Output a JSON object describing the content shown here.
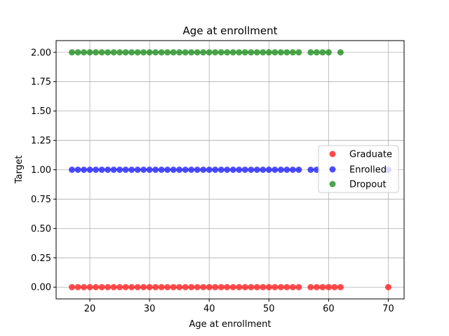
{
  "chart_data": {
    "type": "scatter",
    "title": "Age at enrollment",
    "xlabel": "Age at enrollment",
    "ylabel": "Target",
    "xlim": [
      14.35,
      72.65
    ],
    "ylim": [
      -0.1,
      2.1
    ],
    "xticks": [
      20,
      30,
      40,
      50,
      60,
      70
    ],
    "xtick_labels": [
      "20",
      "30",
      "40",
      "50",
      "60",
      "70"
    ],
    "yticks": [
      0,
      0.25,
      0.5,
      0.75,
      1.0,
      1.25,
      1.5,
      1.75,
      2.0
    ],
    "ytick_labels": [
      "0.00",
      "0.25",
      "0.50",
      "0.75",
      "1.00",
      "1.25",
      "1.50",
      "1.75",
      "2.00"
    ],
    "grid": true,
    "legend_position": "right",
    "series": [
      {
        "name": "Graduate",
        "color": "#ff0000",
        "x": [
          17,
          18,
          19,
          20,
          21,
          22,
          23,
          24,
          25,
          26,
          27,
          28,
          29,
          30,
          31,
          32,
          33,
          34,
          35,
          36,
          37,
          38,
          39,
          40,
          41,
          42,
          43,
          44,
          45,
          46,
          47,
          48,
          49,
          50,
          51,
          52,
          53,
          54,
          55,
          57,
          58,
          59,
          60,
          61,
          62,
          70
        ],
        "y": [
          0,
          0,
          0,
          0,
          0,
          0,
          0,
          0,
          0,
          0,
          0,
          0,
          0,
          0,
          0,
          0,
          0,
          0,
          0,
          0,
          0,
          0,
          0,
          0,
          0,
          0,
          0,
          0,
          0,
          0,
          0,
          0,
          0,
          0,
          0,
          0,
          0,
          0,
          0,
          0,
          0,
          0,
          0,
          0,
          0,
          0
        ]
      },
      {
        "name": "Enrolled",
        "color": "#0000ff",
        "x": [
          17,
          18,
          19,
          20,
          21,
          22,
          23,
          24,
          25,
          26,
          27,
          28,
          29,
          30,
          31,
          32,
          33,
          34,
          35,
          36,
          37,
          38,
          39,
          40,
          41,
          42,
          43,
          44,
          45,
          46,
          47,
          48,
          49,
          50,
          51,
          52,
          53,
          54,
          55,
          57,
          58,
          70
        ],
        "y": [
          1,
          1,
          1,
          1,
          1,
          1,
          1,
          1,
          1,
          1,
          1,
          1,
          1,
          1,
          1,
          1,
          1,
          1,
          1,
          1,
          1,
          1,
          1,
          1,
          1,
          1,
          1,
          1,
          1,
          1,
          1,
          1,
          1,
          1,
          1,
          1,
          1,
          1,
          1,
          1,
          1,
          1
        ]
      },
      {
        "name": "Dropout",
        "color": "#008000",
        "x": [
          17,
          18,
          19,
          20,
          21,
          22,
          23,
          24,
          25,
          26,
          27,
          28,
          29,
          30,
          31,
          32,
          33,
          34,
          35,
          36,
          37,
          38,
          39,
          40,
          41,
          42,
          43,
          44,
          45,
          46,
          47,
          48,
          49,
          50,
          51,
          52,
          53,
          54,
          55,
          57,
          58,
          59,
          60,
          62
        ],
        "y": [
          2,
          2,
          2,
          2,
          2,
          2,
          2,
          2,
          2,
          2,
          2,
          2,
          2,
          2,
          2,
          2,
          2,
          2,
          2,
          2,
          2,
          2,
          2,
          2,
          2,
          2,
          2,
          2,
          2,
          2,
          2,
          2,
          2,
          2,
          2,
          2,
          2,
          2,
          2,
          2,
          2,
          2,
          2,
          2
        ]
      }
    ]
  }
}
